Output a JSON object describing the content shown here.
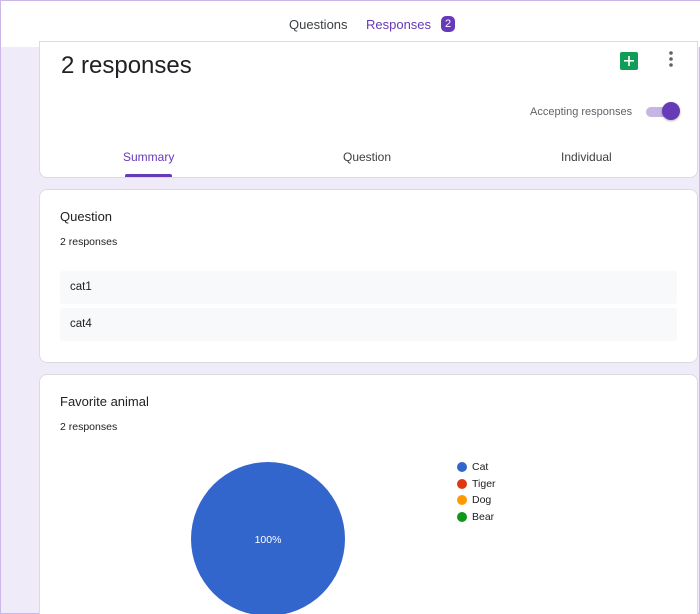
{
  "top_tabs": {
    "questions": "Questions",
    "responses": "Responses",
    "responses_badge": "2"
  },
  "header": {
    "response_count": "2 responses",
    "accepting_label": "Accepting responses",
    "accepting_on": true,
    "icons": {
      "sheets": "google-sheets-icon",
      "more": "more-vert-icon"
    }
  },
  "sub_tabs": [
    "Summary",
    "Question",
    "Individual"
  ],
  "question_card": {
    "title": "Question",
    "subtitle": "2 responses",
    "answers": [
      "cat1",
      "cat4"
    ]
  },
  "animal_card": {
    "title": "Favorite animal",
    "subtitle": "2 responses"
  },
  "colors": {
    "accent": "#673ab7",
    "background": "#f0ebf8",
    "sheets_green": "#0f9d58"
  },
  "chart_data": {
    "type": "pie",
    "categories": [
      "Cat",
      "Tiger",
      "Dog",
      "Bear"
    ],
    "values": [
      2,
      0,
      0,
      0
    ],
    "colors": [
      "#3366cc",
      "#dc3912",
      "#ff9900",
      "#109618"
    ],
    "slice_labels": [
      "100%"
    ],
    "legend_position": "right"
  }
}
